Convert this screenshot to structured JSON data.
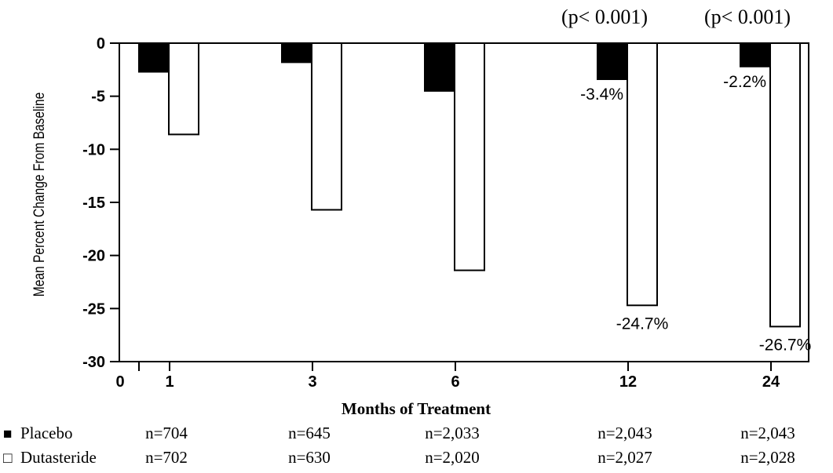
{
  "chart_data": {
    "type": "bar",
    "ylabel": "Mean Percent Change From Baseline",
    "xlabel": "Months of Treatment",
    "ylim": [
      -30,
      0
    ],
    "yticks": [
      0,
      -5,
      -10,
      -15,
      -20,
      -25,
      -30
    ],
    "xtick_origin": "0",
    "categories": [
      "1",
      "3",
      "6",
      "12",
      "24"
    ],
    "series": [
      {
        "name": "Placebo",
        "marker": "■",
        "color": "#000000",
        "values": [
          -2.7,
          -1.8,
          -4.5,
          -3.4,
          -2.2
        ],
        "n": [
          "n=704",
          "n=645",
          "n=2,033",
          "n=2,043",
          "n=2,043"
        ]
      },
      {
        "name": "Dutasteride",
        "marker": "□",
        "color": "#ffffff",
        "values": [
          -8.6,
          -15.7,
          -21.4,
          -24.7,
          -26.7
        ],
        "n": [
          "n=702",
          "n=630",
          "n=2,020",
          "n=2,027",
          "n=2,028"
        ]
      }
    ],
    "annotations": {
      "p_values": [
        {
          "category": "12",
          "text": "(p< 0.001)"
        },
        {
          "category": "24",
          "text": "(p< 0.001)"
        }
      ],
      "value_labels": [
        {
          "category": "12",
          "series": "Placebo",
          "text": "-3.4%"
        },
        {
          "category": "24",
          "series": "Placebo",
          "text": "-2.2%"
        },
        {
          "category": "12",
          "series": "Dutasteride",
          "text": "-24.7%"
        },
        {
          "category": "24",
          "series": "Dutasteride",
          "text": "-26.7%"
        }
      ]
    },
    "grid": false
  }
}
